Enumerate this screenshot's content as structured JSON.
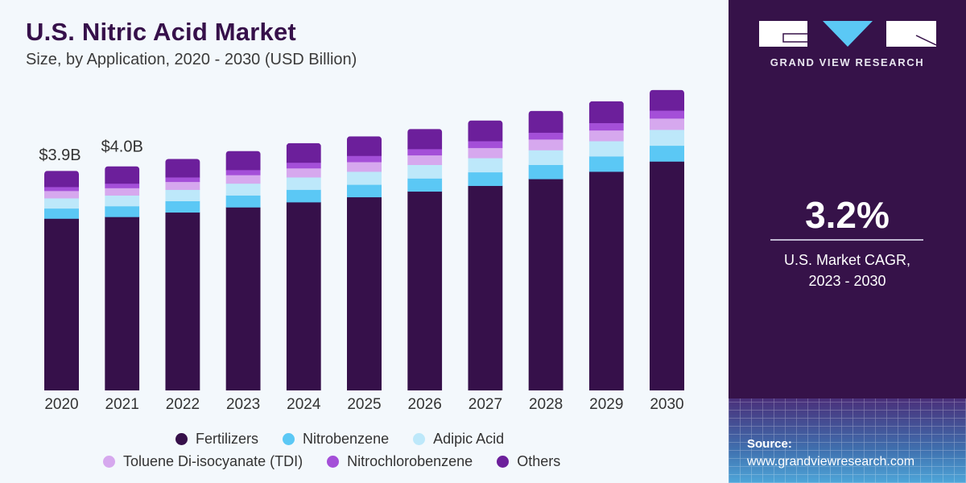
{
  "header": {
    "title": "U.S. Nitric Acid Market",
    "subtitle": "Size, by Application, 2020 - 2030 (USD Billion)"
  },
  "sidebar": {
    "brand": "GRAND VIEW RESEARCH",
    "cagr_value": "3.2%",
    "cagr_label_line1": "U.S. Market CAGR,",
    "cagr_label_line2": "2023 - 2030",
    "source_label": "Source:",
    "source_url": "www.grandviewresearch.com",
    "colors": {
      "background": "#361249",
      "logo_accent": "#5bc8f5"
    }
  },
  "chart_data": {
    "type": "bar",
    "stacked": true,
    "title": "U.S. Nitric Acid Market",
    "subtitle": "Size, by Application, 2020 - 2030 (USD Billion)",
    "xlabel": "",
    "ylabel": "USD Billion",
    "ylim": [
      0,
      5.5
    ],
    "grid": false,
    "legend_position": "bottom",
    "categories": [
      "2020",
      "2021",
      "2022",
      "2023",
      "2024",
      "2025",
      "2026",
      "2027",
      "2028",
      "2029",
      "2030"
    ],
    "annotations": [
      {
        "category": "2020",
        "text": "$3.9B"
      },
      {
        "category": "2021",
        "text": "$4.0B"
      }
    ],
    "series": [
      {
        "name": "Fertilizers",
        "color": "#36104a",
        "values": [
          3.04,
          3.07,
          3.15,
          3.24,
          3.33,
          3.42,
          3.52,
          3.62,
          3.74,
          3.87,
          4.05
        ]
      },
      {
        "name": "Nitrobenzene",
        "color": "#5bc8f5",
        "values": [
          0.18,
          0.19,
          0.2,
          0.21,
          0.22,
          0.22,
          0.23,
          0.24,
          0.25,
          0.27,
          0.28
        ]
      },
      {
        "name": "Adipic Acid",
        "color": "#bde8fa",
        "values": [
          0.18,
          0.19,
          0.2,
          0.21,
          0.22,
          0.23,
          0.24,
          0.25,
          0.26,
          0.27,
          0.28
        ]
      },
      {
        "name": "Toluene Di-isocyanate (TDI)",
        "color": "#d6a8ee",
        "values": [
          0.13,
          0.13,
          0.14,
          0.15,
          0.16,
          0.17,
          0.17,
          0.18,
          0.19,
          0.19,
          0.2
        ]
      },
      {
        "name": "Nitrochlorobenzene",
        "color": "#a44fd8",
        "values": [
          0.07,
          0.08,
          0.08,
          0.09,
          0.1,
          0.11,
          0.11,
          0.12,
          0.12,
          0.13,
          0.14
        ]
      },
      {
        "name": "Others",
        "color": "#6c1f9b",
        "values": [
          0.28,
          0.3,
          0.32,
          0.33,
          0.34,
          0.34,
          0.35,
          0.36,
          0.38,
          0.38,
          0.36
        ]
      }
    ],
    "totals": [
      3.9,
      4.0,
      4.1,
      4.2,
      4.4,
      4.5,
      4.6,
      4.8,
      5.0,
      5.1,
      5.3
    ]
  }
}
